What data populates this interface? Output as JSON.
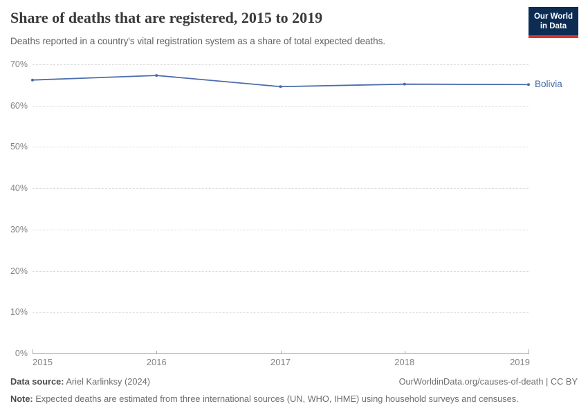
{
  "logo": {
    "line1": "Our World",
    "line2": "in Data",
    "bg_color": "#0d2c54",
    "bar_color": "#d8352c",
    "text_color": "#ffffff"
  },
  "chart_data": {
    "type": "line",
    "title": "Share of deaths that are registered, 2015 to 2019",
    "subtitle": "Deaths reported in a country's vital registration system as a share of total expected deaths.",
    "x": [
      2015,
      2016,
      2017,
      2018,
      2019
    ],
    "series": [
      {
        "name": "Bolivia",
        "color": "#4c6cab",
        "label_color": "#3c66a6",
        "values": [
          66.2,
          67.3,
          64.6,
          65.2,
          65.1
        ]
      }
    ],
    "ylim": [
      0,
      70
    ],
    "yticks": [
      0,
      10,
      20,
      30,
      40,
      50,
      60,
      70
    ],
    "ytick_suffix": "%",
    "xlabel": "",
    "ylabel": "",
    "grid": "horizontal-dashed",
    "legend_position": "end-of-line",
    "grid_color": "#dcdcdc",
    "axis_color": "#a8a8a8",
    "tick_label_color": "#838383"
  },
  "footer": {
    "datasource_label": "Data source:",
    "datasource_value": " Ariel Karlinksy (2024)",
    "license": "OurWorldinData.org/causes-of-death | CC BY",
    "note_label": "Note:",
    "note_value": " Expected deaths are estimated from three international sources (UN, WHO, IHME) using household surveys and censuses."
  }
}
